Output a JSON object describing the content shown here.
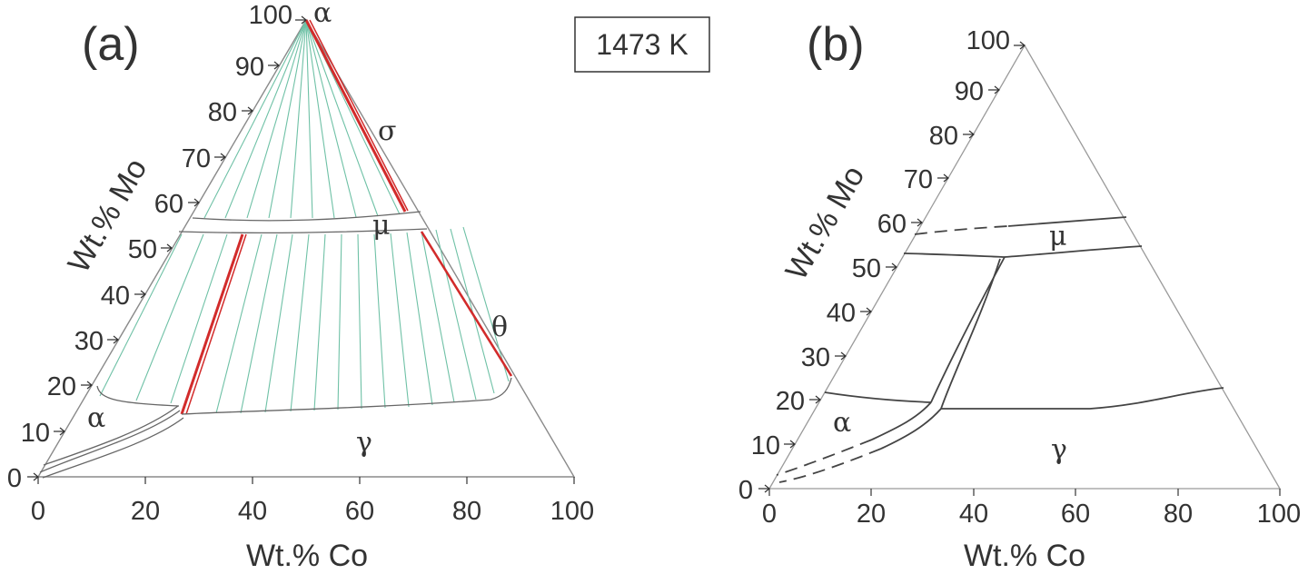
{
  "temperature_label": "1473 K",
  "panel_a": {
    "label": "(a)",
    "x_axis_label": "Wt.% Co",
    "y_axis_label": "Wt.% Mo",
    "x_ticks": [
      "0",
      "20",
      "40",
      "60",
      "80",
      "100"
    ],
    "y_ticks": [
      "0",
      "10",
      "20",
      "30",
      "40",
      "50",
      "60",
      "70",
      "80",
      "90",
      "100"
    ],
    "phase_labels": {
      "alpha_top": "α",
      "sigma": "σ",
      "mu": "μ",
      "theta": "θ",
      "alpha_left": "α",
      "gamma": "γ"
    }
  },
  "panel_b": {
    "label": "(b)",
    "x_axis_label": "Wt.% Co",
    "y_axis_label": "Wt.% Mo",
    "x_ticks": [
      "0",
      "20",
      "40",
      "60",
      "80",
      "100"
    ],
    "y_ticks": [
      "0",
      "10",
      "20",
      "30",
      "40",
      "50",
      "60",
      "70",
      "80",
      "90",
      "100"
    ],
    "phase_labels": {
      "mu": "μ",
      "alpha": "α",
      "gamma": "γ"
    }
  },
  "colors": {
    "tie_line": "#6fc1a6",
    "red_phase": "#d22b2b",
    "line": "#444444",
    "light_line": "#999999"
  }
}
